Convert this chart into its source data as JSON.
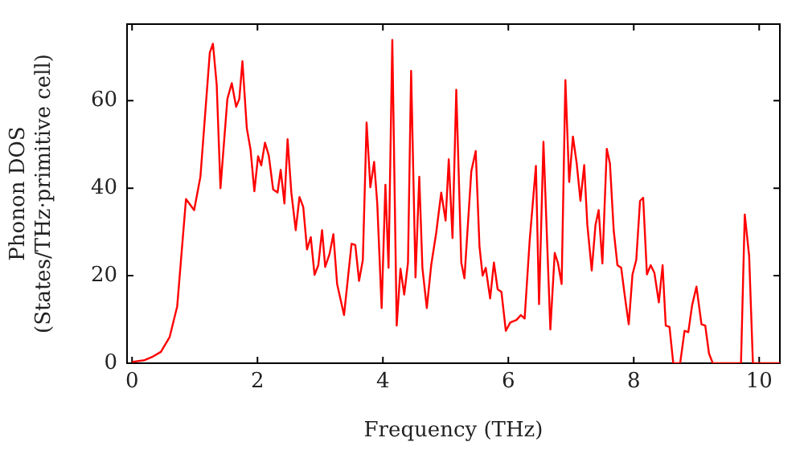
{
  "chart_data": {
    "type": "line",
    "xlabel": "Frequency (THz)",
    "ylabel": "Phonon DOS\n(States/THz·primitive cell)",
    "xlim": [
      -0.08,
      10.33
    ],
    "ylim": [
      0,
      77.5
    ],
    "xticks": [
      0,
      2,
      4,
      6,
      8,
      10
    ],
    "yticks": [
      0,
      20,
      40,
      60
    ],
    "grid": false,
    "legend": false,
    "marker": "none",
    "line_style": "solid",
    "x": [
      0,
      0.2,
      0.33,
      0.46,
      0.6,
      0.72,
      0.86,
      0.99,
      1.09,
      1.24,
      1.29,
      1.35,
      1.41,
      1.52,
      1.59,
      1.66,
      1.71,
      1.76,
      1.83,
      1.89,
      1.95,
      2.01,
      2.06,
      2.12,
      2.18,
      2.25,
      2.32,
      2.37,
      2.43,
      2.48,
      2.54,
      2.61,
      2.67,
      2.73,
      2.79,
      2.85,
      2.91,
      2.97,
      3.03,
      3.08,
      3.15,
      3.21,
      3.27,
      3.38,
      3.5,
      3.56,
      3.62,
      3.68,
      3.74,
      3.8,
      3.86,
      3.91,
      3.98,
      4.04,
      4.09,
      4.15,
      4.22,
      4.28,
      4.34,
      4.4,
      4.45,
      4.52,
      4.58,
      4.63,
      4.7,
      4.77,
      4.85,
      4.93,
      5.0,
      5.05,
      5.11,
      5.17,
      5.25,
      5.3,
      5.41,
      5.48,
      5.54,
      5.59,
      5.64,
      5.71,
      5.77,
      5.83,
      5.89,
      5.96,
      6.03,
      6.13,
      6.2,
      6.26,
      6.34,
      6.44,
      6.49,
      6.56,
      6.67,
      6.74,
      6.79,
      6.85,
      6.91,
      6.97,
      7.03,
      7.09,
      7.15,
      7.21,
      7.26,
      7.33,
      7.39,
      7.44,
      7.5,
      7.57,
      7.62,
      7.68,
      7.74,
      7.8,
      7.86,
      7.92,
      7.98,
      8.04,
      8.1,
      8.15,
      8.21,
      8.27,
      8.33,
      8.4,
      8.46,
      8.51,
      8.57,
      8.63,
      8.74,
      8.81,
      8.87,
      8.93,
      9.0,
      9.08,
      9.14,
      9.2,
      9.26,
      9.71,
      9.77,
      9.84,
      9.9,
      10.33
    ],
    "series": [
      {
        "color": "#ff0000",
        "values": [
          0.3,
          0.7,
          1.5,
          2.6,
          6,
          13,
          37.5,
          35,
          42.6,
          71,
          73,
          63.6,
          40,
          60.4,
          64,
          58.6,
          60.4,
          69,
          53.7,
          48.8,
          39.3,
          47.3,
          45.2,
          50.4,
          47.5,
          39.7,
          39,
          44.2,
          36.5,
          51.2,
          39,
          30.4,
          38,
          35.7,
          26,
          28.8,
          20.2,
          22.4,
          30.4,
          22,
          25,
          29.5,
          18.1,
          11,
          27.3,
          27,
          18.8,
          23.6,
          55,
          40.2,
          46,
          36.5,
          12.6,
          40.8,
          21.8,
          73.9,
          8.6,
          21.6,
          15.7,
          23,
          66.8,
          19.6,
          42.6,
          21.8,
          12.6,
          22.4,
          29.8,
          39,
          32.6,
          46.6,
          28.6,
          62.5,
          23,
          19.4,
          43.9,
          48.5,
          26.7,
          20,
          21.8,
          14.8,
          23,
          16.9,
          16.3,
          7.4,
          9.3,
          9.9,
          11,
          10.2,
          28,
          45.1,
          13.5,
          50.6,
          7.7,
          25.2,
          23,
          18.1,
          64.7,
          41.4,
          51.8,
          45.7,
          37.1,
          45.3,
          31.6,
          21.2,
          31.6,
          35,
          22.8,
          49,
          45.7,
          30.4,
          22.4,
          21.8,
          15.1,
          8.9,
          20.3,
          23.6,
          37.1,
          37.8,
          20.3,
          22.4,
          20.6,
          13.9,
          22.4,
          8.6,
          8.3,
          0,
          0,
          7.4,
          7.1,
          13.2,
          17.5,
          8.9,
          8.6,
          2.2,
          0,
          0,
          34,
          24.5,
          0,
          0
        ]
      }
    ]
  }
}
